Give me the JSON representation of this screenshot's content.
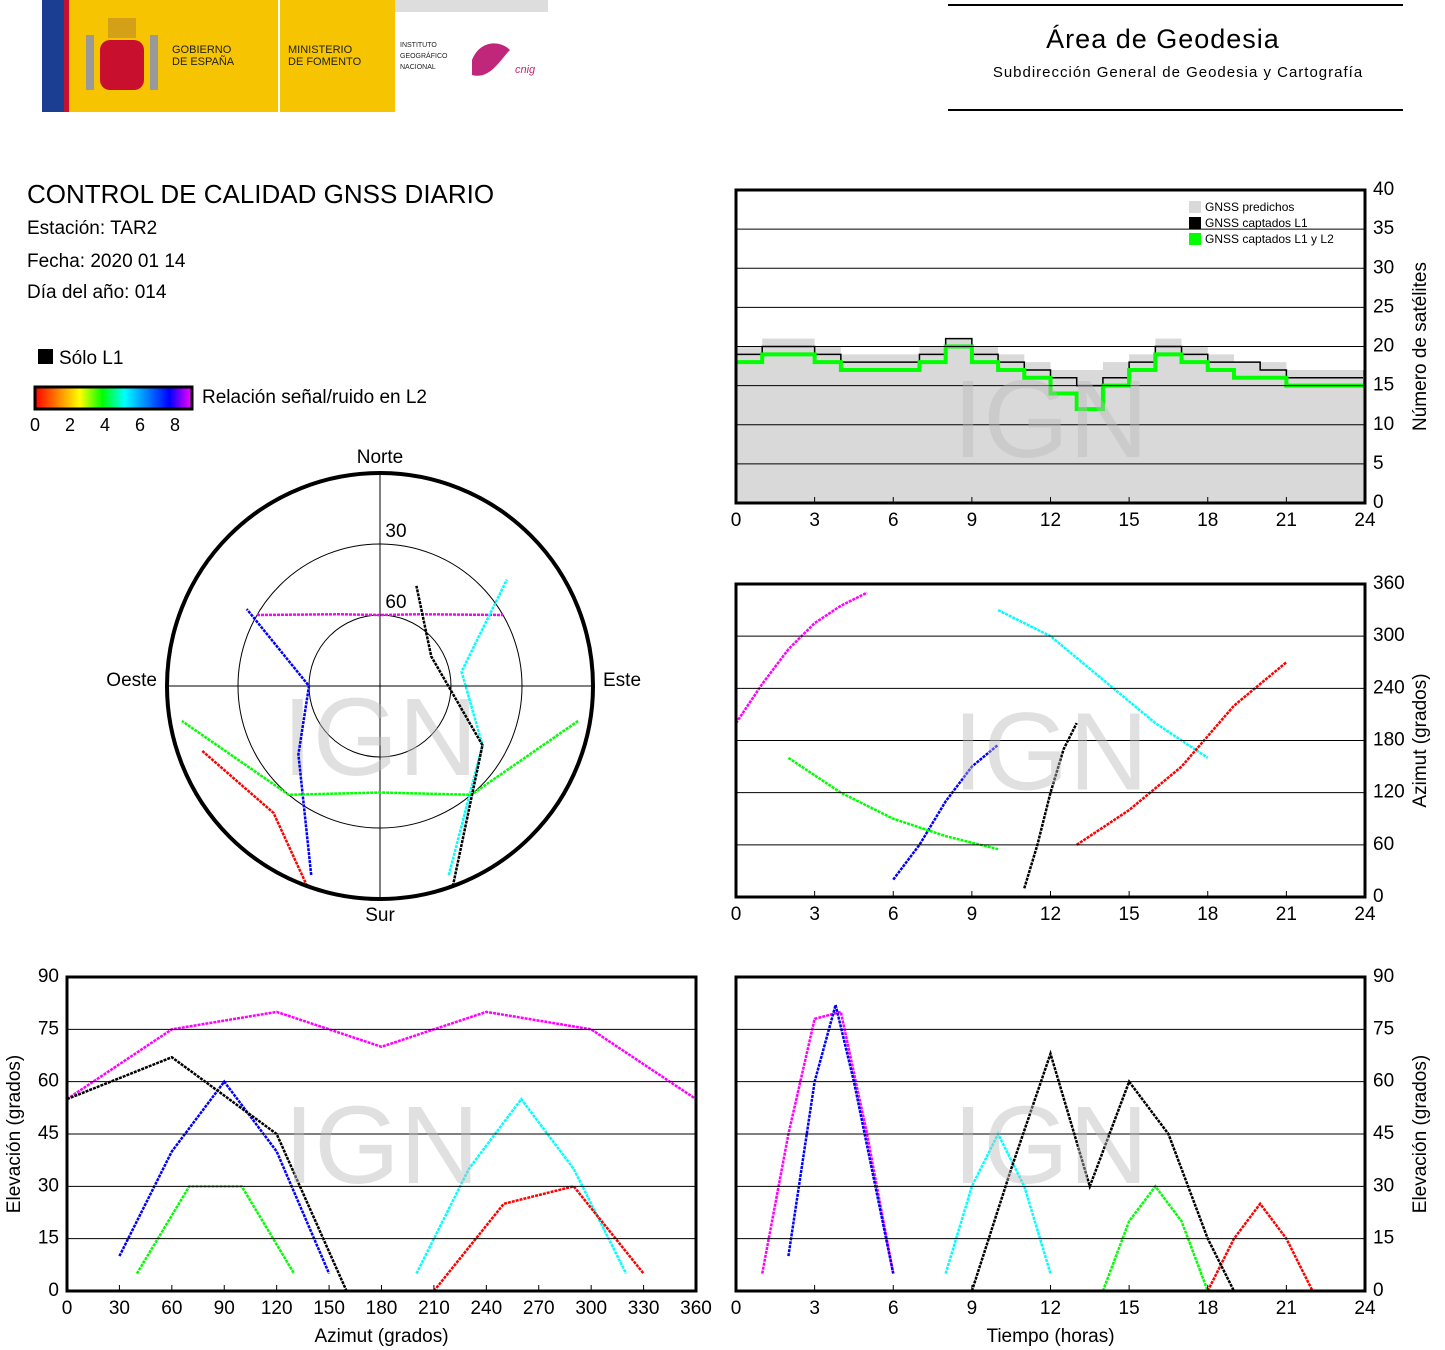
{
  "header": {
    "gobierno": [
      "GOBIERNO",
      "DE ESPAÑA"
    ],
    "ministerio": [
      "MINISTERIO",
      "DE FOMENTO"
    ],
    "instituto": [
      "INSTITUTO",
      "GEOGRÁFICO",
      "NACIONAL"
    ],
    "cnig": "cnig",
    "area": "Área de Geodesia",
    "subdireccion": "Subdirección General de Geodesia y Cartografía"
  },
  "report": {
    "title": "CONTROL DE CALIDAD GNSS DIARIO",
    "station": "Estación: TAR2",
    "date": "Fecha: 2020 01 14",
    "doy": "Día del año: 014",
    "l1_only": "Sólo L1",
    "colorbar_label": "Relación señal/ruido en L2",
    "colorbar_ticks": [
      0,
      2,
      4,
      6,
      8
    ],
    "colorbar_colors": [
      "#ff0000",
      "#ff8000",
      "#ffff00",
      "#00ff00",
      "#00ffff",
      "#0080ff",
      "#0000ff",
      "#ff00ff"
    ]
  },
  "chart_data": [
    {
      "type": "step",
      "ylabel": "Número de satélites",
      "watermark": "IGN",
      "x": [
        0,
        1,
        2,
        3,
        4,
        5,
        6,
        7,
        8,
        9,
        10,
        11,
        12,
        13,
        14,
        15,
        16,
        17,
        18,
        19,
        20,
        21,
        22,
        23,
        24
      ],
      "series": [
        {
          "name": "GNSS predichos",
          "color": "#d9d9d9",
          "fill": true,
          "values": [
            20,
            21,
            21,
            20,
            19,
            19,
            19,
            20,
            21,
            20,
            19,
            18,
            17,
            17,
            18,
            19,
            21,
            20,
            19,
            18,
            18,
            17,
            17,
            17,
            19
          ]
        },
        {
          "name": "GNSS captados L1",
          "color": "#000000",
          "values": [
            19,
            20,
            20,
            19,
            18,
            18,
            18,
            19,
            21,
            19,
            18,
            17,
            16,
            15,
            16,
            18,
            20,
            19,
            18,
            18,
            17,
            16,
            16,
            16,
            18
          ]
        },
        {
          "name": "GNSS captados L1 y L2",
          "color": "#00ff00",
          "values": [
            18,
            19,
            19,
            18,
            17,
            17,
            17,
            18,
            20,
            18,
            17,
            16,
            14,
            12,
            15,
            17,
            19,
            18,
            17,
            16,
            16,
            15,
            15,
            15,
            17
          ]
        }
      ],
      "legend": "upper right",
      "xlim": [
        0,
        24
      ],
      "xticks": [
        0,
        3,
        6,
        9,
        12,
        15,
        18,
        21,
        24
      ],
      "ylim": [
        0,
        40
      ],
      "yticks": [
        0,
        5,
        10,
        15,
        20,
        25,
        30,
        35,
        40
      ],
      "grid": true
    },
    {
      "type": "polar",
      "north": "Norte",
      "south": "Sur",
      "east": "Este",
      "west": "Oeste",
      "watermark": "IGN",
      "rticks": [
        30,
        60
      ],
      "series": [
        {
          "color": "#ff00ff",
          "x": [
            300,
            330,
            0,
            30,
            60
          ],
          "values": [
            30,
            55,
            60,
            55,
            30
          ]
        },
        {
          "color": "#0000ff",
          "x": [
            200,
            230,
            270,
            300
          ],
          "values": [
            5,
            45,
            60,
            25
          ]
        },
        {
          "color": "#00ffff",
          "x": [
            160,
            120,
            80,
            50
          ],
          "values": [
            5,
            40,
            55,
            20
          ]
        },
        {
          "color": "#00ff00",
          "x": [
            100,
            140,
            180,
            220,
            260
          ],
          "values": [
            5,
            30,
            45,
            30,
            5
          ]
        },
        {
          "color": "#ff0000",
          "x": [
            200,
            220,
            250
          ],
          "values": [
            0,
            20,
            10
          ]
        },
        {
          "color": "#000000",
          "x": [
            160,
            120,
            60,
            20
          ],
          "values": [
            0,
            40,
            65,
            45
          ]
        }
      ]
    },
    {
      "type": "track",
      "ylabel": "Azimut (grados)",
      "watermark": "IGN",
      "series": [
        {
          "color": "#ff00ff",
          "x": [
            0,
            1,
            2,
            3,
            4,
            5
          ],
          "values": [
            200,
            245,
            285,
            315,
            335,
            350
          ]
        },
        {
          "color": "#0000ff",
          "x": [
            6,
            7,
            8,
            9,
            10
          ],
          "values": [
            20,
            60,
            110,
            150,
            175
          ]
        },
        {
          "color": "#00ffff",
          "x": [
            10,
            12,
            14,
            16,
            18
          ],
          "values": [
            330,
            300,
            250,
            200,
            160
          ]
        },
        {
          "color": "#00ff00",
          "x": [
            2,
            4,
            6,
            8,
            10
          ],
          "values": [
            160,
            120,
            90,
            70,
            55
          ]
        },
        {
          "color": "#ff0000",
          "x": [
            13,
            15,
            17,
            19,
            21
          ],
          "values": [
            60,
            100,
            150,
            220,
            270
          ]
        },
        {
          "color": "#000000",
          "x": [
            11,
            11.5,
            12,
            12.5,
            13
          ],
          "values": [
            10,
            60,
            120,
            170,
            200
          ]
        }
      ],
      "xlim": [
        0,
        24
      ],
      "xticks": [
        0,
        3,
        6,
        9,
        12,
        15,
        18,
        21,
        24
      ],
      "ylim": [
        0,
        360
      ],
      "yticks": [
        0,
        60,
        120,
        180,
        240,
        300,
        360
      ],
      "grid": true
    },
    {
      "type": "track",
      "xlabel": "Azimut (grados)",
      "ylabel": "Elevación (grados)",
      "watermark": "IGN",
      "series": [
        {
          "color": "#ff00ff",
          "x": [
            0,
            60,
            120,
            180,
            240,
            300,
            360
          ],
          "values": [
            55,
            75,
            80,
            70,
            80,
            75,
            55
          ]
        },
        {
          "color": "#0000ff",
          "x": [
            30,
            60,
            90,
            120,
            150
          ],
          "values": [
            10,
            40,
            60,
            40,
            5
          ]
        },
        {
          "color": "#00ffff",
          "x": [
            200,
            230,
            260,
            290,
            320
          ],
          "values": [
            5,
            35,
            55,
            35,
            5
          ]
        },
        {
          "color": "#00ff00",
          "x": [
            40,
            70,
            100,
            130
          ],
          "values": [
            5,
            30,
            30,
            5
          ]
        },
        {
          "color": "#ff0000",
          "x": [
            210,
            250,
            290,
            330
          ],
          "values": [
            0,
            25,
            30,
            5
          ]
        },
        {
          "color": "#000000",
          "x": [
            0,
            60,
            120,
            160
          ],
          "values": [
            55,
            67,
            45,
            0
          ]
        }
      ],
      "xlim": [
        0,
        360
      ],
      "xticks": [
        0,
        30,
        60,
        90,
        120,
        150,
        180,
        210,
        240,
        270,
        300,
        330,
        360
      ],
      "ylim": [
        0,
        90
      ],
      "yticks": [
        0,
        15,
        30,
        45,
        60,
        75,
        90
      ],
      "grid": true
    },
    {
      "type": "track",
      "xlabel": "Tiempo (horas)",
      "ylabel": "Elevación (grados)",
      "watermark": "IGN",
      "series": [
        {
          "color": "#ff00ff",
          "x": [
            1,
            2,
            3,
            4,
            5,
            6
          ],
          "values": [
            5,
            45,
            78,
            80,
            45,
            5
          ]
        },
        {
          "color": "#0000ff",
          "x": [
            2,
            3,
            3.8,
            4.5,
            6
          ],
          "values": [
            10,
            60,
            82,
            60,
            5
          ]
        },
        {
          "color": "#00ffff",
          "x": [
            8,
            9,
            10,
            11,
            12
          ],
          "values": [
            5,
            30,
            45,
            30,
            5
          ]
        },
        {
          "color": "#00ff00",
          "x": [
            14,
            15,
            16,
            17,
            18
          ],
          "values": [
            0,
            20,
            30,
            20,
            0
          ]
        },
        {
          "color": "#ff0000",
          "x": [
            18,
            19,
            20,
            21,
            22
          ],
          "values": [
            0,
            15,
            25,
            15,
            0
          ]
        },
        {
          "color": "#000000",
          "x": [
            9,
            10.5,
            12,
            13.5,
            15,
            16.5,
            18,
            19
          ],
          "values": [
            0,
            35,
            68,
            30,
            60,
            45,
            15,
            0
          ]
        }
      ],
      "xlim": [
        0,
        24
      ],
      "xticks": [
        0,
        3,
        6,
        9,
        12,
        15,
        18,
        21,
        24
      ],
      "ylim": [
        0,
        90
      ],
      "yticks": [
        0,
        15,
        30,
        45,
        60,
        75,
        90
      ],
      "grid": true
    }
  ]
}
